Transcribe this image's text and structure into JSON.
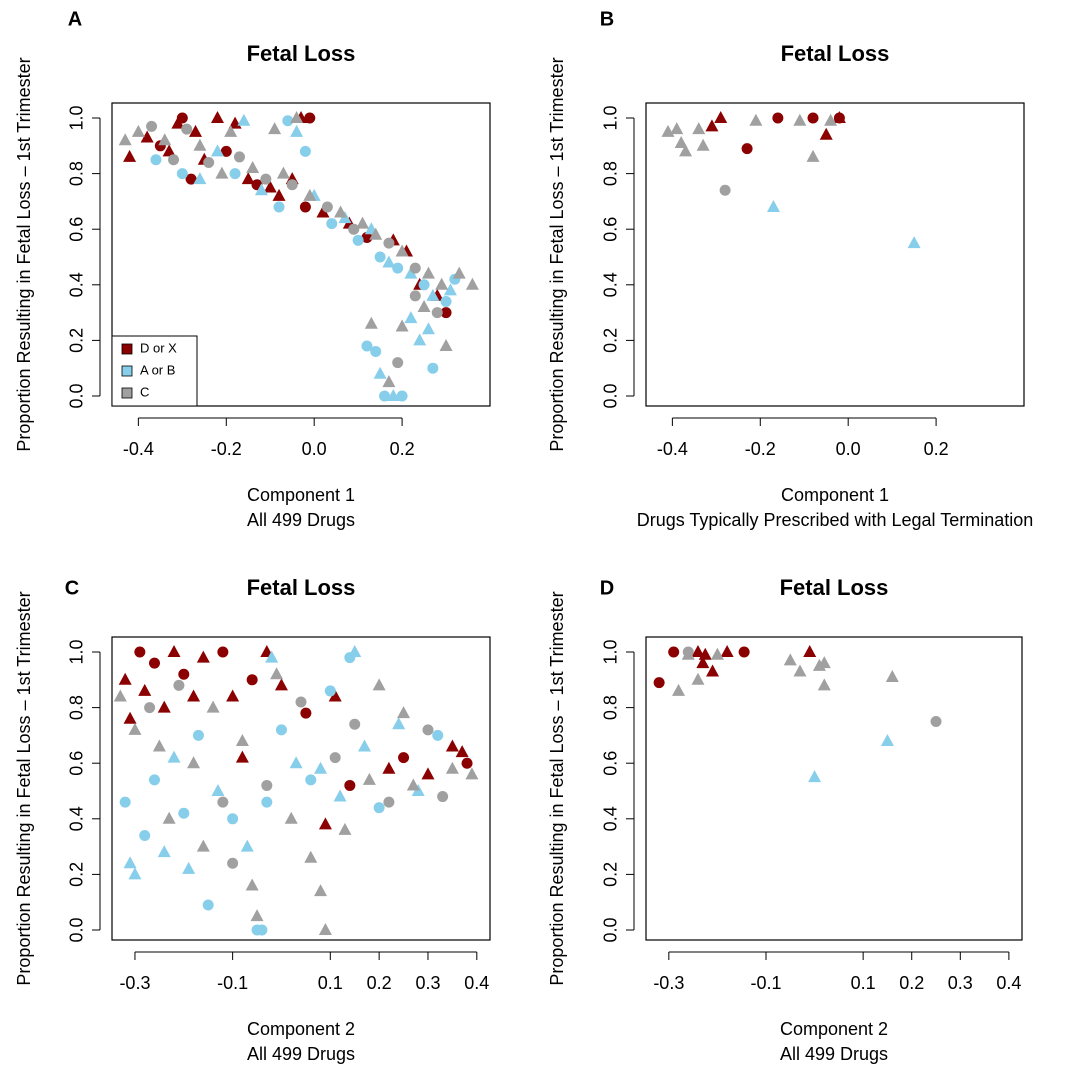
{
  "chart_data": [
    {
      "type": "scatter",
      "panel_label": "A",
      "title": "Fetal Loss",
      "xlabel": [
        "Component 1",
        "All 499 Drugs"
      ],
      "ylabel": "Proportion Resulting in Fetal Loss – 1st Trimester",
      "xlim": [
        -0.46,
        0.4
      ],
      "ylim": [
        -0.036,
        1.054
      ],
      "xticks": [
        -0.4,
        -0.2,
        {
          "value": 0,
          "label": "0.0"
        },
        0.2
      ],
      "yticks": [
        {
          "value": 0,
          "label": "0.0"
        },
        0.2,
        0.4,
        0.6,
        0.8,
        {
          "value": 1,
          "label": "1.0"
        }
      ],
      "legend": "bottom-left",
      "series": [
        {
          "name": "D or X",
          "color": "#8b0000",
          "x": [
            -0.42,
            -0.38,
            -0.35,
            -0.33,
            -0.31,
            -0.3,
            -0.28,
            -0.27,
            -0.25,
            -0.22,
            -0.2,
            -0.18,
            -0.15,
            -0.13,
            -0.1,
            -0.08,
            -0.05,
            -0.03,
            -0.02,
            -0.01,
            0.02,
            0.08,
            0.12,
            0.18,
            0.21,
            0.24,
            0.28,
            0.3
          ],
          "values": [
            0.86,
            0.93,
            0.9,
            0.88,
            0.98,
            1.0,
            0.78,
            0.95,
            0.85,
            1.0,
            0.88,
            0.98,
            0.78,
            0.76,
            0.75,
            0.72,
            0.78,
            1.0,
            0.68,
            1.0,
            0.66,
            0.62,
            0.57,
            0.56,
            0.52,
            0.4,
            0.36,
            0.3
          ],
          "markers": [
            "triangle",
            "triangle",
            "circle",
            "triangle",
            "triangle",
            "circle",
            "circle",
            "triangle",
            "triangle",
            "triangle",
            "circle",
            "triangle",
            "triangle",
            "circle",
            "triangle",
            "triangle",
            "triangle",
            "triangle",
            "circle",
            "circle",
            "triangle",
            "triangle",
            "circle",
            "triangle",
            "triangle",
            "triangle",
            "triangle",
            "circle"
          ]
        },
        {
          "name": "A or B",
          "color": "#87ceeb",
          "x": [
            -0.36,
            -0.3,
            -0.26,
            -0.22,
            -0.18,
            -0.16,
            -0.12,
            -0.08,
            -0.06,
            -0.04,
            -0.02,
            0.0,
            0.04,
            0.07,
            0.1,
            0.13,
            0.15,
            0.17,
            0.19,
            0.22,
            0.25,
            0.27,
            0.3,
            0.32,
            0.31,
            0.22,
            0.26,
            0.12,
            0.14,
            0.15,
            0.16,
            0.18,
            0.2,
            0.27,
            0.24
          ],
          "values": [
            0.85,
            0.8,
            0.78,
            0.88,
            0.8,
            0.99,
            0.74,
            0.68,
            0.99,
            0.95,
            0.88,
            0.72,
            0.62,
            0.64,
            0.56,
            0.6,
            0.5,
            0.48,
            0.46,
            0.44,
            0.4,
            0.36,
            0.34,
            0.42,
            0.38,
            0.28,
            0.24,
            0.18,
            0.16,
            0.08,
            0.0,
            0.0,
            0.0,
            0.1,
            0.2
          ],
          "markers": [
            "circle",
            "circle",
            "triangle",
            "triangle",
            "circle",
            "triangle",
            "triangle",
            "circle",
            "circle",
            "triangle",
            "circle",
            "triangle",
            "circle",
            "triangle",
            "circle",
            "triangle",
            "circle",
            "triangle",
            "circle",
            "triangle",
            "circle",
            "triangle",
            "circle",
            "circle",
            "triangle",
            "triangle",
            "triangle",
            "circle",
            "circle",
            "triangle",
            "circle",
            "triangle",
            "circle",
            "circle",
            "triangle"
          ]
        },
        {
          "name": "C",
          "color": "#a0a0a0",
          "x": [
            -0.43,
            -0.4,
            -0.37,
            -0.34,
            -0.32,
            -0.29,
            -0.26,
            -0.24,
            -0.21,
            -0.19,
            -0.17,
            -0.14,
            -0.11,
            -0.09,
            -0.07,
            -0.05,
            -0.04,
            -0.01,
            0.03,
            0.06,
            0.09,
            0.11,
            0.14,
            0.17,
            0.2,
            0.23,
            0.26,
            0.29,
            0.33,
            0.36,
            0.28,
            0.25,
            0.2,
            0.13,
            0.19,
            0.17,
            0.3,
            0.23
          ],
          "values": [
            0.92,
            0.95,
            0.97,
            0.92,
            0.85,
            0.96,
            0.9,
            0.84,
            0.8,
            0.95,
            0.86,
            0.82,
            0.78,
            0.96,
            0.8,
            0.76,
            1.0,
            0.72,
            0.68,
            0.66,
            0.6,
            0.62,
            0.58,
            0.55,
            0.52,
            0.46,
            0.44,
            0.4,
            0.44,
            0.4,
            0.3,
            0.32,
            0.25,
            0.26,
            0.12,
            0.05,
            0.18,
            0.36
          ],
          "markers": [
            "triangle",
            "triangle",
            "circle",
            "triangle",
            "circle",
            "circle",
            "triangle",
            "circle",
            "triangle",
            "triangle",
            "circle",
            "triangle",
            "circle",
            "triangle",
            "triangle",
            "circle",
            "triangle",
            "triangle",
            "circle",
            "triangle",
            "circle",
            "triangle",
            "triangle",
            "circle",
            "triangle",
            "circle",
            "triangle",
            "triangle",
            "triangle",
            "triangle",
            "circle",
            "triangle",
            "triangle",
            "triangle",
            "circle",
            "triangle",
            "triangle",
            "circle"
          ]
        }
      ]
    },
    {
      "type": "scatter",
      "panel_label": "B",
      "title": "Fetal Loss",
      "xlabel": [
        "Component 1",
        "Drugs Typically Prescribed with Legal Termination"
      ],
      "ylabel": "Proportion Resulting in Fetal Loss – 1st Trimester",
      "xlim": [
        -0.46,
        0.4
      ],
      "ylim": [
        -0.036,
        1.054
      ],
      "xticks": [
        -0.4,
        -0.2,
        {
          "value": 0,
          "label": "0.0"
        },
        0.2
      ],
      "yticks": [
        {
          "value": 0,
          "label": "0.0"
        },
        0.2,
        0.4,
        0.6,
        0.8,
        {
          "value": 1,
          "label": "1.0"
        }
      ],
      "series": [
        {
          "color": "#8b0000",
          "x": [
            -0.31,
            -0.29,
            -0.05,
            -0.02,
            -0.23,
            -0.16,
            -0.08,
            -0.02
          ],
          "values": [
            0.97,
            1.0,
            0.94,
            1.0,
            0.89,
            1.0,
            1.0,
            1.0
          ],
          "markers": [
            "triangle",
            "triangle",
            "triangle",
            "triangle",
            "circle",
            "circle",
            "circle",
            "circle"
          ]
        },
        {
          "color": "#87ceeb",
          "x": [
            -0.17,
            0.15
          ],
          "values": [
            0.68,
            0.55
          ],
          "markers": [
            "triangle",
            "triangle"
          ]
        },
        {
          "color": "#a0a0a0",
          "x": [
            -0.41,
            -0.39,
            -0.38,
            -0.37,
            -0.34,
            -0.33,
            -0.21,
            -0.11,
            -0.08,
            -0.04,
            -0.28
          ],
          "values": [
            0.95,
            0.96,
            0.91,
            0.88,
            0.96,
            0.9,
            0.99,
            0.99,
            0.86,
            0.99,
            0.74
          ],
          "markers": [
            "triangle",
            "triangle",
            "triangle",
            "triangle",
            "triangle",
            "triangle",
            "triangle",
            "triangle",
            "triangle",
            "triangle",
            "circle"
          ]
        }
      ]
    },
    {
      "type": "scatter",
      "panel_label": "C",
      "title": "Fetal Loss",
      "xlabel": [
        "Component 2",
        "All 499 Drugs"
      ],
      "ylabel": "Proportion Resulting in Fetal Loss – 1st Trimester",
      "xlim": [
        -0.347,
        0.427
      ],
      "ylim": [
        -0.036,
        1.054
      ],
      "xticks": [
        -0.3,
        -0.1,
        0.1,
        0.2,
        0.3,
        0.4
      ],
      "yticks": [
        {
          "value": 0,
          "label": "0.0"
        },
        0.2,
        0.4,
        0.6,
        0.8,
        {
          "value": 1,
          "label": "1.0"
        }
      ],
      "series": [
        {
          "color": "#8b0000",
          "x": [
            -0.32,
            -0.31,
            -0.29,
            -0.28,
            -0.26,
            -0.24,
            -0.22,
            -0.2,
            -0.18,
            -0.16,
            -0.12,
            -0.1,
            -0.08,
            -0.06,
            -0.03,
            0.0,
            0.05,
            0.09,
            0.11,
            0.14,
            0.22,
            0.25,
            0.3,
            0.35,
            0.37,
            0.38
          ],
          "values": [
            0.9,
            0.76,
            1.0,
            0.86,
            0.96,
            0.8,
            1.0,
            0.92,
            0.84,
            0.98,
            1.0,
            0.84,
            0.62,
            0.9,
            1.0,
            0.88,
            0.78,
            0.38,
            0.84,
            0.52,
            0.58,
            0.62,
            0.56,
            0.66,
            0.64,
            0.6
          ],
          "markers": [
            "triangle",
            "triangle",
            "circle",
            "triangle",
            "circle",
            "triangle",
            "triangle",
            "circle",
            "triangle",
            "triangle",
            "circle",
            "triangle",
            "triangle",
            "circle",
            "triangle",
            "triangle",
            "circle",
            "triangle",
            "triangle",
            "circle",
            "triangle",
            "circle",
            "triangle",
            "triangle",
            "triangle",
            "circle"
          ]
        },
        {
          "color": "#87ceeb",
          "x": [
            -0.32,
            -0.31,
            -0.3,
            -0.28,
            -0.26,
            -0.24,
            -0.22,
            -0.2,
            -0.19,
            -0.17,
            -0.15,
            -0.13,
            -0.1,
            -0.07,
            -0.05,
            -0.04,
            -0.03,
            -0.02,
            0.0,
            0.03,
            0.06,
            0.08,
            0.1,
            0.12,
            0.14,
            0.15,
            0.17,
            0.2,
            0.24,
            0.28,
            0.32
          ],
          "values": [
            0.46,
            0.24,
            0.2,
            0.34,
            0.54,
            0.28,
            0.62,
            0.42,
            0.22,
            0.7,
            0.09,
            0.5,
            0.4,
            0.3,
            0.0,
            0.0,
            0.46,
            0.98,
            0.72,
            0.6,
            0.54,
            0.58,
            0.86,
            0.48,
            0.98,
            1.0,
            0.66,
            0.44,
            0.74,
            0.5,
            0.7
          ],
          "markers": [
            "circle",
            "triangle",
            "triangle",
            "circle",
            "circle",
            "triangle",
            "triangle",
            "circle",
            "triangle",
            "circle",
            "circle",
            "triangle",
            "circle",
            "triangle",
            "circle",
            "circle",
            "circle",
            "triangle",
            "circle",
            "triangle",
            "circle",
            "triangle",
            "circle",
            "triangle",
            "circle",
            "triangle",
            "triangle",
            "circle",
            "triangle",
            "triangle",
            "circle"
          ]
        },
        {
          "color": "#a0a0a0",
          "x": [
            -0.33,
            -0.3,
            -0.27,
            -0.25,
            -0.23,
            -0.21,
            -0.18,
            -0.16,
            -0.14,
            -0.12,
            -0.1,
            -0.08,
            -0.06,
            -0.05,
            -0.03,
            -0.01,
            0.02,
            0.04,
            0.06,
            0.08,
            0.09,
            0.11,
            0.13,
            0.15,
            0.18,
            0.2,
            0.22,
            0.25,
            0.27,
            0.3,
            0.33,
            0.35,
            0.39
          ],
          "values": [
            0.84,
            0.72,
            0.8,
            0.66,
            0.4,
            0.88,
            0.6,
            0.3,
            0.8,
            0.46,
            0.24,
            0.68,
            0.16,
            0.05,
            0.52,
            0.92,
            0.4,
            0.82,
            0.26,
            0.14,
            0.0,
            0.62,
            0.36,
            0.74,
            0.54,
            0.88,
            0.46,
            0.78,
            0.52,
            0.72,
            0.48,
            0.58,
            0.56
          ],
          "markers": [
            "triangle",
            "triangle",
            "circle",
            "triangle",
            "triangle",
            "circle",
            "triangle",
            "triangle",
            "triangle",
            "circle",
            "circle",
            "triangle",
            "triangle",
            "triangle",
            "circle",
            "triangle",
            "triangle",
            "circle",
            "triangle",
            "triangle",
            "triangle",
            "circle",
            "triangle",
            "circle",
            "triangle",
            "triangle",
            "circle",
            "triangle",
            "triangle",
            "circle",
            "circle",
            "triangle",
            "triangle"
          ]
        }
      ]
    },
    {
      "type": "scatter",
      "panel_label": "D",
      "title": "Fetal Loss",
      "xlabel": [
        "Component 2",
        "All 499 Drugs"
      ],
      "ylabel": "Proportion Resulting in Fetal Loss – 1st Trimester",
      "xlim": [
        -0.347,
        0.427
      ],
      "ylim": [
        -0.036,
        1.054
      ],
      "xticks": [
        -0.3,
        -0.1,
        0.1,
        0.2,
        0.3,
        0.4
      ],
      "yticks": [
        {
          "value": 0,
          "label": "0.0"
        },
        0.2,
        0.4,
        0.6,
        0.8,
        {
          "value": 1,
          "label": "1.0"
        }
      ],
      "series": [
        {
          "color": "#8b0000",
          "x": [
            -0.32,
            -0.29,
            -0.145,
            -0.24,
            -0.23,
            -0.225,
            -0.21,
            -0.18,
            -0.01
          ],
          "values": [
            0.89,
            1.0,
            1.0,
            1.0,
            0.96,
            0.99,
            0.93,
            1.0,
            1.0
          ],
          "markers": [
            "circle",
            "circle",
            "circle",
            "triangle",
            "triangle",
            "triangle",
            "triangle",
            "triangle",
            "triangle"
          ]
        },
        {
          "color": "#87ceeb",
          "x": [
            0.15,
            0.0
          ],
          "values": [
            0.68,
            0.55
          ],
          "markers": [
            "triangle",
            "triangle"
          ]
        },
        {
          "color": "#a0a0a0",
          "x": [
            -0.28,
            -0.26,
            -0.24,
            -0.2,
            -0.05,
            -0.03,
            0.01,
            0.02,
            0.02,
            0.16,
            -0.26,
            0.25
          ],
          "values": [
            0.86,
            0.99,
            0.9,
            0.99,
            0.97,
            0.93,
            0.95,
            0.96,
            0.88,
            0.91,
            1.0,
            0.75
          ],
          "markers": [
            "triangle",
            "triangle",
            "triangle",
            "triangle",
            "triangle",
            "triangle",
            "triangle",
            "triangle",
            "triangle",
            "triangle",
            "circle",
            "circle"
          ]
        }
      ]
    }
  ]
}
